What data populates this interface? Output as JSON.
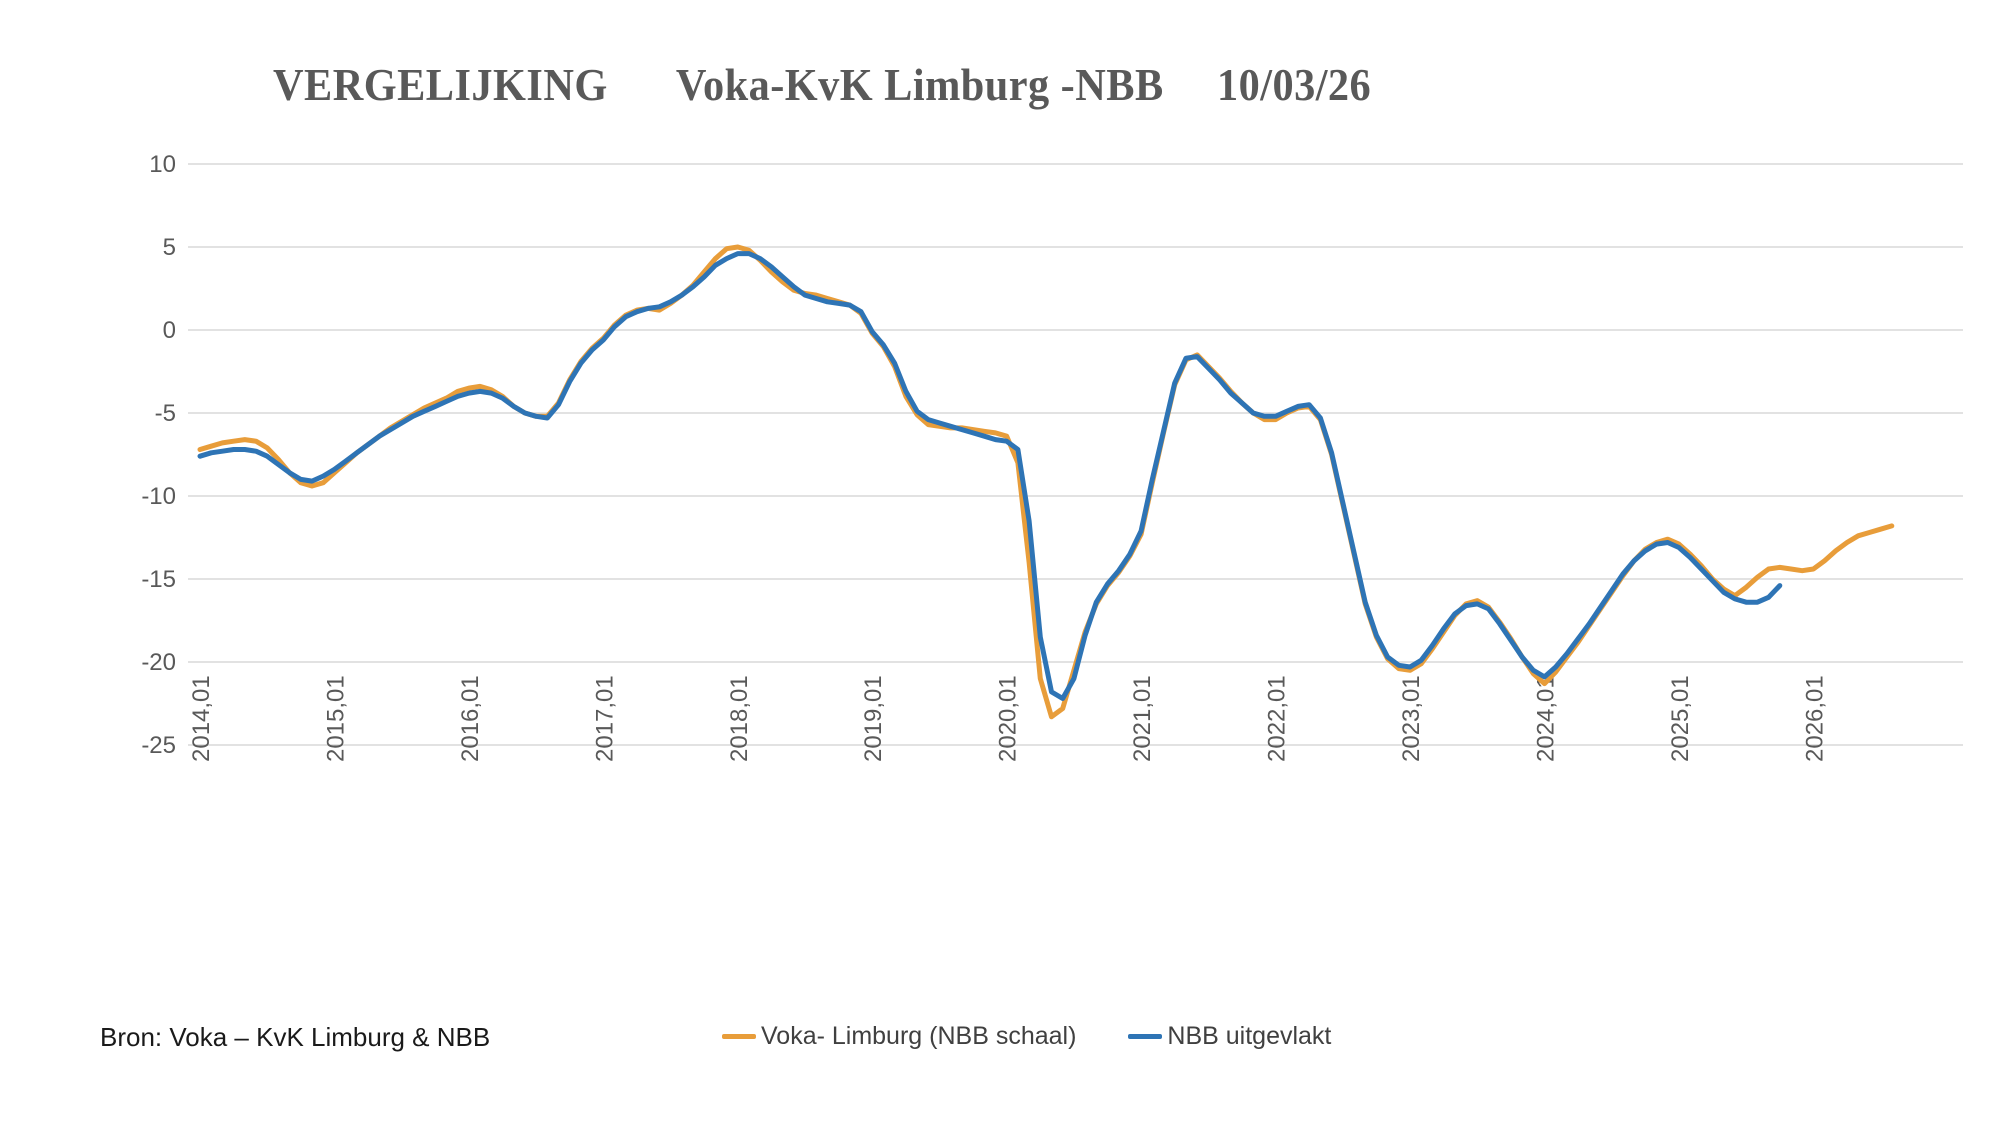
{
  "title": {
    "part1": "VERGELIJKING",
    "part2": "Voka-KvK Limburg -NBB",
    "date": "10/03/26"
  },
  "source": {
    "text": "Bron: Voka – KvK Limburg & NBB"
  },
  "colors": {
    "gridline": "#D9D9D9",
    "axis_text": "#595959",
    "title_text": "#595959",
    "voka_orange": "#E89D3A",
    "nbb_blue": "#2E74B5"
  },
  "chart_data": {
    "type": "line",
    "title": "VERGELIJKING  Voka-KvK Limburg -NBB  10/03/26",
    "x_frequency": "monthly",
    "x_start": "2014-01",
    "x_tick_labels": [
      "2014,01",
      "2015,01",
      "2016,01",
      "2017,01",
      "2018,01",
      "2019,01",
      "2020,01",
      "2021,01",
      "2022,01",
      "2023,01",
      "2024,01",
      "2025,01",
      "2026,01"
    ],
    "y_ticks": [
      10,
      5,
      0,
      -5,
      -10,
      -15,
      -20,
      -25
    ],
    "ylim": [
      -25,
      10
    ],
    "grid": "horizontal-only",
    "legend_position": "bottom-center",
    "series": [
      {
        "name": "Voka- Limburg (NBB schaal)",
        "color": "#E89D3A",
        "start": "2014-01",
        "end": "2026-08",
        "values": [
          -7.2,
          -7.0,
          -6.8,
          -6.7,
          -6.6,
          -6.7,
          -7.1,
          -7.8,
          -8.6,
          -9.2,
          -9.4,
          -9.2,
          -8.6,
          -8.0,
          -7.4,
          -6.9,
          -6.4,
          -5.9,
          -5.5,
          -5.1,
          -4.7,
          -4.4,
          -4.1,
          -3.7,
          -3.5,
          -3.4,
          -3.6,
          -4.0,
          -4.6,
          -5.0,
          -5.2,
          -5.2,
          -4.4,
          -3.0,
          -1.9,
          -1.1,
          -0.5,
          0.3,
          0.9,
          1.2,
          1.3,
          1.2,
          1.6,
          2.1,
          2.7,
          3.5,
          4.3,
          4.9,
          5.0,
          4.8,
          4.2,
          3.5,
          2.9,
          2.4,
          2.2,
          2.1,
          1.9,
          1.7,
          1.5,
          1.0,
          -0.2,
          -1.0,
          -2.2,
          -4.0,
          -5.1,
          -5.7,
          -5.8,
          -5.9,
          -5.9,
          -6.0,
          -6.1,
          -6.2,
          -6.4,
          -8.0,
          -14.0,
          -21.0,
          -23.3,
          -22.8,
          -20.5,
          -18.2,
          -16.5,
          -15.4,
          -14.6,
          -13.6,
          -12.3,
          -9.2,
          -6.2,
          -3.3,
          -1.8,
          -1.5,
          -2.2,
          -2.9,
          -3.7,
          -4.4,
          -5.0,
          -5.4,
          -5.4,
          -5.0,
          -4.7,
          -4.6,
          -5.4,
          -7.5,
          -10.5,
          -13.5,
          -16.5,
          -18.5,
          -19.8,
          -20.4,
          -20.5,
          -20.1,
          -19.2,
          -18.2,
          -17.2,
          -16.5,
          -16.3,
          -16.7,
          -17.6,
          -18.6,
          -19.7,
          -20.7,
          -21.3,
          -20.6,
          -19.7,
          -18.8,
          -17.8,
          -16.8,
          -15.8,
          -14.8,
          -13.9,
          -13.2,
          -12.8,
          -12.6,
          -12.9,
          -13.5,
          -14.2,
          -15.0,
          -15.6,
          -16.0,
          -15.5,
          -14.9,
          -14.4,
          -14.3,
          -14.4,
          -14.5,
          -14.4,
          -13.9,
          -13.3,
          -12.8,
          -12.4,
          -12.2,
          -12.0,
          -11.8
        ]
      },
      {
        "name": "NBB  uitgevlakt",
        "color": "#2E74B5",
        "start": "2014-01",
        "end": "2025-10",
        "values": [
          -7.6,
          -7.4,
          -7.3,
          -7.2,
          -7.2,
          -7.3,
          -7.6,
          -8.1,
          -8.6,
          -9.0,
          -9.1,
          -8.8,
          -8.4,
          -7.9,
          -7.4,
          -6.9,
          -6.4,
          -6.0,
          -5.6,
          -5.2,
          -4.9,
          -4.6,
          -4.3,
          -4.0,
          -3.8,
          -3.7,
          -3.8,
          -4.1,
          -4.6,
          -5.0,
          -5.2,
          -5.3,
          -4.5,
          -3.1,
          -2.0,
          -1.2,
          -0.6,
          0.2,
          0.8,
          1.1,
          1.3,
          1.4,
          1.7,
          2.1,
          2.6,
          3.2,
          3.9,
          4.3,
          4.6,
          4.6,
          4.3,
          3.8,
          3.2,
          2.6,
          2.1,
          1.9,
          1.7,
          1.6,
          1.5,
          1.1,
          -0.1,
          -0.9,
          -2.0,
          -3.7,
          -4.9,
          -5.4,
          -5.6,
          -5.8,
          -6.0,
          -6.2,
          -6.4,
          -6.6,
          -6.7,
          -7.2,
          -11.5,
          -18.5,
          -21.8,
          -22.2,
          -21.0,
          -18.4,
          -16.4,
          -15.3,
          -14.5,
          -13.5,
          -12.1,
          -9.0,
          -6.1,
          -3.2,
          -1.7,
          -1.6,
          -2.3,
          -3.0,
          -3.8,
          -4.4,
          -5.0,
          -5.2,
          -5.2,
          -4.9,
          -4.6,
          -4.5,
          -5.3,
          -7.4,
          -10.4,
          -13.4,
          -16.4,
          -18.4,
          -19.7,
          -20.2,
          -20.3,
          -19.9,
          -19.0,
          -18.0,
          -17.1,
          -16.6,
          -16.5,
          -16.8,
          -17.7,
          -18.7,
          -19.7,
          -20.5,
          -20.9,
          -20.3,
          -19.5,
          -18.6,
          -17.7,
          -16.7,
          -15.7,
          -14.7,
          -13.9,
          -13.3,
          -12.9,
          -12.8,
          -13.1,
          -13.7,
          -14.4,
          -15.1,
          -15.8,
          -16.2,
          -16.4,
          -16.4,
          -16.1,
          -15.4
        ]
      }
    ]
  }
}
